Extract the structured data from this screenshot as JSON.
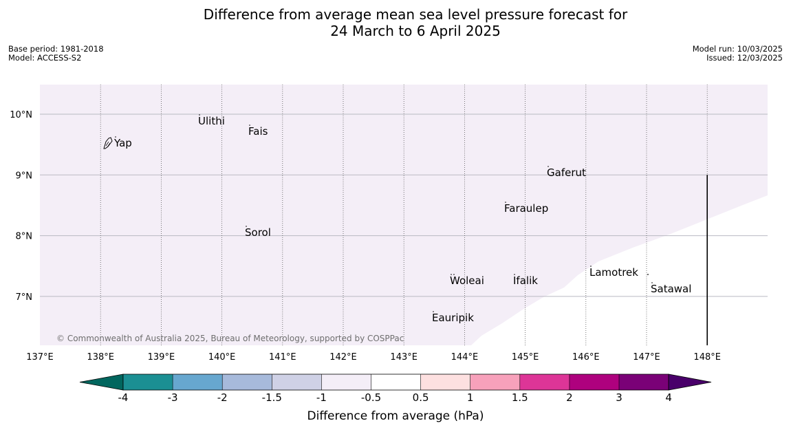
{
  "title_line1": "Difference from average mean sea level pressure forecast for",
  "title_line2": "24 March to 6 April 2025",
  "meta_left": {
    "base_period": "Base period: 1981-2018",
    "model": "Model: ACCESS-S2"
  },
  "meta_right": {
    "model_run": "Model run: 10/03/2025",
    "issued": "Issued: 12/03/2025"
  },
  "map": {
    "lon_range": [
      137,
      149
    ],
    "lat_range": [
      6.2,
      10.5
    ],
    "lon_ticks": [
      {
        "value": 137,
        "label": "137°E"
      },
      {
        "value": 138,
        "label": "138°E"
      },
      {
        "value": 139,
        "label": "139°E"
      },
      {
        "value": 140,
        "label": "140°E"
      },
      {
        "value": 141,
        "label": "141°E"
      },
      {
        "value": 142,
        "label": "142°E"
      },
      {
        "value": 143,
        "label": "143°E"
      },
      {
        "value": 144,
        "label": "144°E"
      },
      {
        "value": 145,
        "label": "145°E"
      },
      {
        "value": 146,
        "label": "146°E"
      },
      {
        "value": 147,
        "label": "147°E"
      },
      {
        "value": 148,
        "label": "148°E"
      }
    ],
    "lat_ticks": [
      {
        "value": 10,
        "label": "10°N"
      },
      {
        "value": 9,
        "label": "9°N"
      },
      {
        "value": 8,
        "label": "8°N"
      },
      {
        "value": 7,
        "label": "7°N"
      }
    ],
    "places": [
      {
        "name": "Yap",
        "lon": 138.2,
        "lat": 9.5
      },
      {
        "name": "Ulithi",
        "lon": 139.75,
        "lat": 9.9
      },
      {
        "name": "Fais",
        "lon": 140.5,
        "lat": 9.75
      },
      {
        "name": "Gaferut",
        "lon": 145.4,
        "lat": 9.0
      },
      {
        "name": "Faraulep",
        "lon": 144.7,
        "lat": 8.45
      },
      {
        "name": "Sorol",
        "lon": 140.4,
        "lat": 8.05
      },
      {
        "name": "Woleai",
        "lon": 143.9,
        "lat": 7.3
      },
      {
        "name": "Ifalik",
        "lon": 144.8,
        "lat": 7.3
      },
      {
        "name": "Lamotrek",
        "lon": 146.1,
        "lat": 7.45
      },
      {
        "name": "Satawal",
        "lon": 147.05,
        "lat": 7.15
      },
      {
        "name": "Eauripik",
        "lon": 143.5,
        "lat": 6.7
      }
    ],
    "shaded_category": "-1 to -0.5",
    "copyright": "© Commonwealth of Australia 2025, Bureau of Meteorology, supported by COSPPac"
  },
  "colorbar": {
    "title": "Difference from average (hPa)",
    "labels": [
      "-4",
      "-3",
      "-2",
      "-1.5",
      "-1",
      "-0.5",
      "0.5",
      "1",
      "1.5",
      "2",
      "3",
      "4"
    ],
    "colors": [
      "#1b8f93",
      "#67a7cf",
      "#a7badb",
      "#cfd1e6",
      "#f4eef7",
      "#ffffff",
      "#fde0e0",
      "#f7a1bb",
      "#dd3597",
      "#ae017e",
      "#7a0177"
    ],
    "under_color": "#01665e",
    "over_color": "#49006a"
  }
}
